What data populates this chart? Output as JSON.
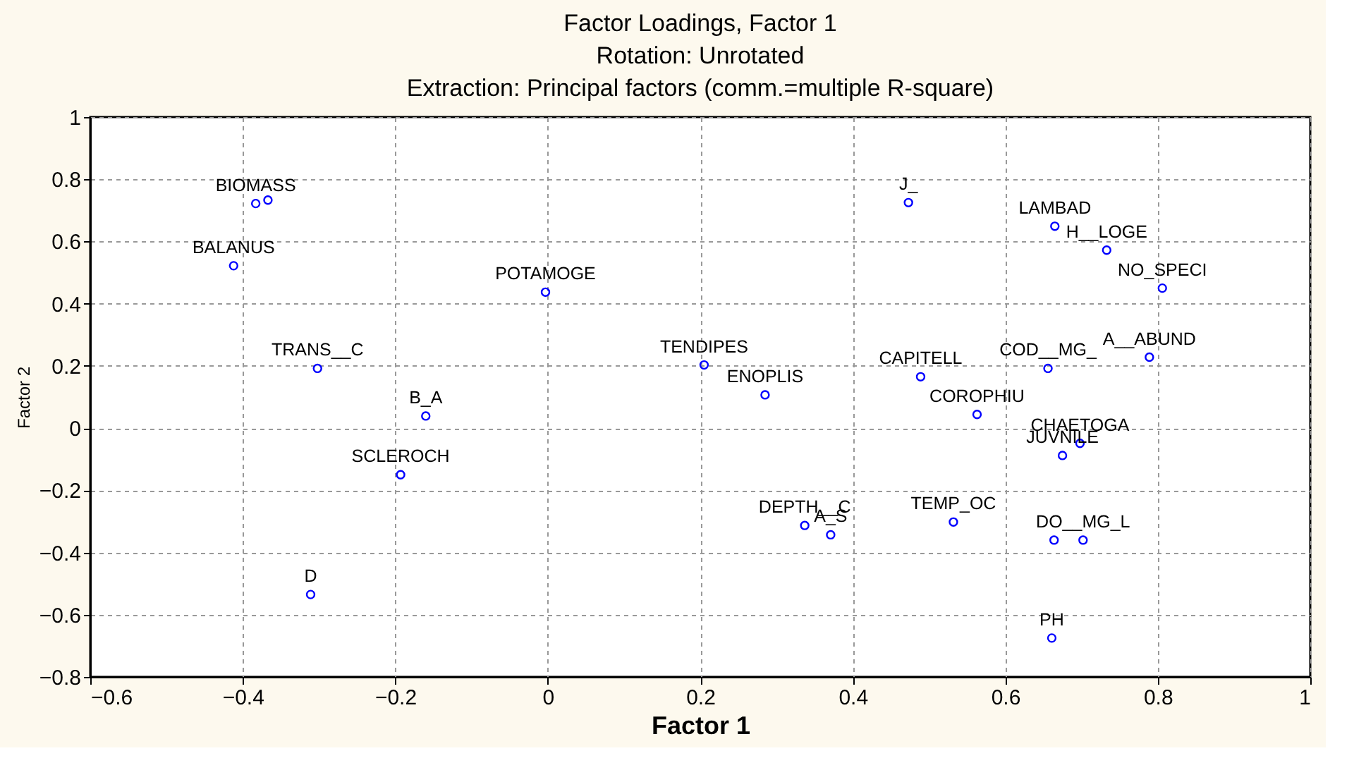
{
  "chart_data": {
    "type": "scatter",
    "title": [
      "Factor Loadings, Factor 1",
      "Rotation: Unrotated",
      "Extraction: Principal factors (comm.=multiple R-square)"
    ],
    "xlabel": "Factor 1",
    "ylabel": "Factor 2",
    "x": [
      -0.383,
      -0.367,
      -0.412,
      -0.003,
      -0.302,
      -0.16,
      -0.193,
      -0.311,
      0.473,
      0.665,
      0.733,
      0.806,
      0.789,
      0.656,
      0.205,
      0.285,
      0.489,
      0.563,
      0.698,
      0.675,
      0.337,
      0.371,
      0.532,
      0.664,
      0.702,
      0.661
    ],
    "series": [
      {
        "color": "#0000ff",
        "values": [
          0.722,
          0.733,
          0.522,
          0.437,
          0.192,
          0.039,
          -0.15,
          -0.535,
          0.725,
          0.649,
          0.572,
          0.45,
          0.228,
          0.192,
          0.203,
          0.107,
          0.165,
          0.044,
          -0.049,
          -0.088,
          -0.313,
          -0.343,
          -0.302,
          -0.36,
          -0.36,
          -0.675
        ]
      }
    ],
    "annotations": [
      {
        "text": "BIOMASS",
        "x": -0.383,
        "y": 0.722
      },
      {
        "text": "BALANUS",
        "x": -0.412,
        "y": 0.522
      },
      {
        "text": "POTAMOGE",
        "x": -0.003,
        "y": 0.437
      },
      {
        "text": "TRANS__C",
        "x": -0.302,
        "y": 0.192
      },
      {
        "text": "B_A",
        "x": -0.16,
        "y": 0.039
      },
      {
        "text": "SCLEROCH",
        "x": -0.193,
        "y": -0.15
      },
      {
        "text": "D",
        "x": -0.311,
        "y": -0.535
      },
      {
        "text": "J_",
        "x": 0.473,
        "y": 0.725
      },
      {
        "text": "LAMBAD",
        "x": 0.665,
        "y": 0.649
      },
      {
        "text": "H__LOGE",
        "x": 0.733,
        "y": 0.572
      },
      {
        "text": "NO_SPECI",
        "x": 0.806,
        "y": 0.45
      },
      {
        "text": "A__ABUND",
        "x": 0.789,
        "y": 0.228
      },
      {
        "text": "COD__MG_",
        "x": 0.656,
        "y": 0.192
      },
      {
        "text": "TENDIPES",
        "x": 0.205,
        "y": 0.203
      },
      {
        "text": "ENOPLIS",
        "x": 0.285,
        "y": 0.107
      },
      {
        "text": "CAPITELL",
        "x": 0.489,
        "y": 0.165
      },
      {
        "text": "COROPHIU",
        "x": 0.563,
        "y": 0.044
      },
      {
        "text": "CHAETOGA",
        "x": 0.698,
        "y": -0.049
      },
      {
        "text": "JUVNILE",
        "x": 0.675,
        "y": -0.088
      },
      {
        "text": "DEPTH__C",
        "x": 0.337,
        "y": -0.313
      },
      {
        "text": "A_S",
        "x": 0.371,
        "y": -0.343
      },
      {
        "text": "TEMP_OC",
        "x": 0.532,
        "y": -0.302
      },
      {
        "text": "DO__MG_L",
        "x": 0.702,
        "y": -0.36
      },
      {
        "text": "PH",
        "x": 0.661,
        "y": -0.675
      }
    ],
    "xlim": [
      -0.6,
      1
    ],
    "ylim": [
      -0.8,
      1
    ],
    "xticks": [
      -0.6,
      -0.4,
      -0.2,
      0,
      0.2,
      0.4,
      0.6,
      0.8,
      1
    ],
    "yticks": [
      -0.8,
      -0.6,
      -0.4,
      -0.2,
      0,
      0.2,
      0.4,
      0.6,
      0.8,
      1
    ],
    "grid": true,
    "marker": "circle"
  }
}
